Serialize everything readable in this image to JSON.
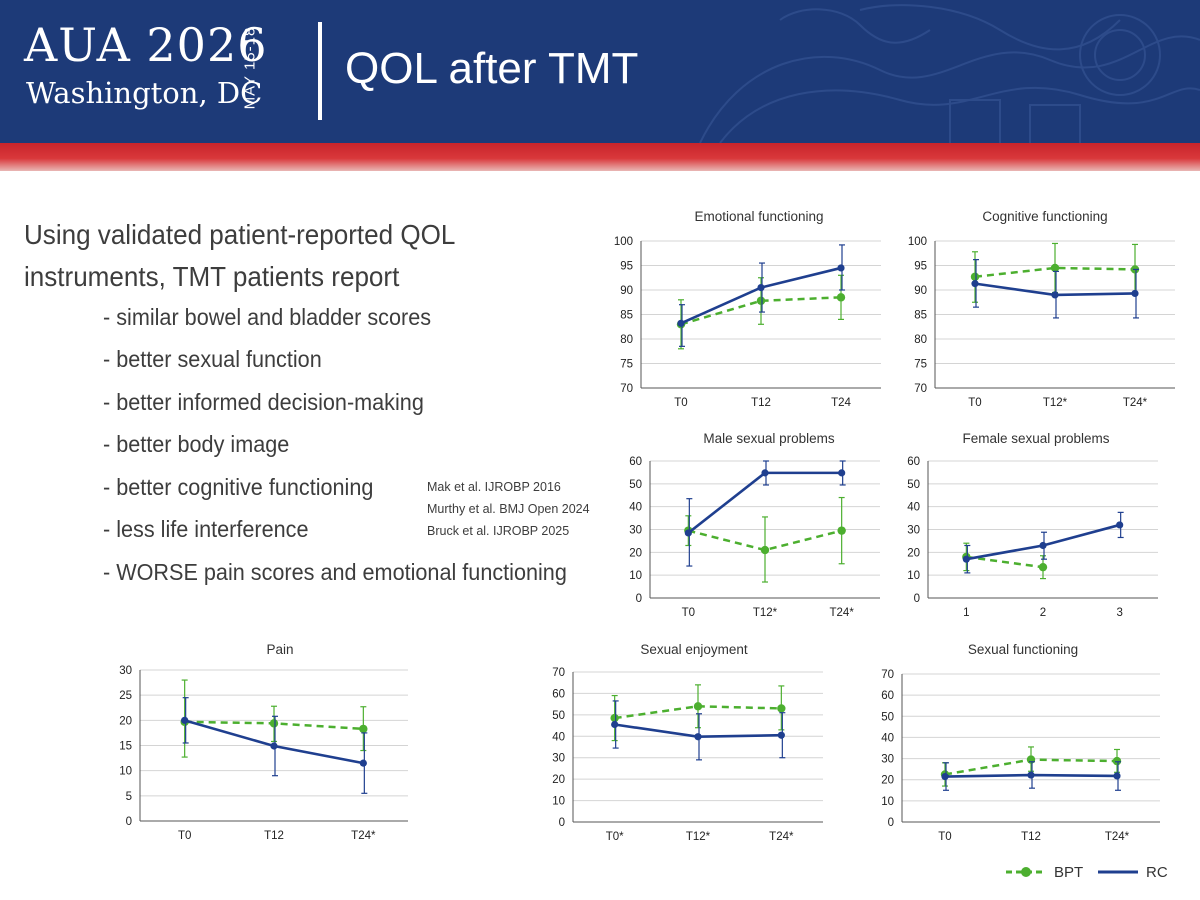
{
  "header": {
    "logo_line1": "AUA 2026",
    "logo_line2": "Washington, DC",
    "logo_dates": "MAY 15-18",
    "title": "QOL after TMT"
  },
  "intro": {
    "line1": "Using validated patient-reported QOL",
    "line2": "instruments, TMT patients report",
    "bullets": [
      "- similar bowel and bladder scores",
      "- better sexual function",
      "- better informed decision-making",
      "- better body image",
      "- better cognitive functioning",
      "- less life interference",
      "- WORSE pain scores and emotional functioning"
    ]
  },
  "references": [
    "Mak et al. IJROBP 2016",
    "Murthy et al. BMJ Open 2024",
    "Bruck et al. IJROBP 2025"
  ],
  "legend": [
    {
      "label": "BPT",
      "color": "#4caf2f",
      "style": "dashed"
    },
    {
      "label": "RC",
      "color": "#1f3f8f",
      "style": "solid"
    }
  ],
  "colors": {
    "bpt": "#4caf2f",
    "rc": "#1f3f8f",
    "banner": "#1d3a78",
    "red_band": "#c8242b"
  },
  "chart_data": [
    {
      "type": "line",
      "title": "Emotional functioning",
      "categories": [
        "T0",
        "T12",
        "T24"
      ],
      "ylim": [
        70,
        100
      ],
      "yticks": [
        70,
        75,
        80,
        85,
        90,
        95,
        100
      ],
      "grid": true,
      "series": [
        {
          "name": "BPT",
          "values": [
            83,
            87.8,
            88.5
          ],
          "err_low": [
            78,
            83,
            84
          ],
          "err_high": [
            88,
            92.5,
            93
          ]
        },
        {
          "name": "RC",
          "values": [
            83.2,
            90.5,
            94.5
          ],
          "err_low": [
            78.5,
            85.5,
            90
          ],
          "err_high": [
            87,
            95.5,
            99.2
          ]
        }
      ]
    },
    {
      "type": "line",
      "title": "Cognitive functioning",
      "categories": [
        "T0",
        "T12*",
        "T24*"
      ],
      "ylim": [
        70,
        100
      ],
      "yticks": [
        70,
        75,
        80,
        85,
        90,
        95,
        100
      ],
      "grid": true,
      "series": [
        {
          "name": "BPT",
          "values": [
            92.7,
            94.5,
            94.2
          ],
          "err_low": [
            87.5,
            89.5,
            89
          ],
          "err_high": [
            97.8,
            99.5,
            99.3
          ]
        },
        {
          "name": "RC",
          "values": [
            91.3,
            89,
            89.3
          ],
          "err_low": [
            86.5,
            84.3,
            84.3
          ],
          "err_high": [
            96.2,
            93.8,
            94.2
          ]
        }
      ]
    },
    {
      "type": "line",
      "title": "Male sexual problems",
      "categories": [
        "T0",
        "T12*",
        "T24*"
      ],
      "ylim": [
        0,
        60
      ],
      "yticks": [
        0,
        10,
        20,
        30,
        40,
        50,
        60
      ],
      "grid": true,
      "series": [
        {
          "name": "BPT",
          "values": [
            29.5,
            21,
            29.5
          ],
          "err_low": [
            23,
            7,
            15
          ],
          "err_high": [
            36,
            35.5,
            44
          ]
        },
        {
          "name": "RC",
          "values": [
            28.5,
            54.8,
            54.8
          ],
          "err_low": [
            14,
            49.5,
            49.5
          ],
          "err_high": [
            43.5,
            60,
            60
          ]
        }
      ]
    },
    {
      "type": "line",
      "title": "Female sexual problems",
      "categories": [
        "1",
        "2",
        "3"
      ],
      "ylim": [
        0,
        60
      ],
      "yticks": [
        0,
        10,
        20,
        30,
        40,
        50,
        60
      ],
      "grid": true,
      "series": [
        {
          "name": "BPT",
          "values": [
            18,
            13.5,
            null
          ],
          "err_low": [
            12,
            8.5,
            null
          ],
          "err_high": [
            24,
            18.5,
            null
          ]
        },
        {
          "name": "RC",
          "values": [
            17,
            23,
            32
          ],
          "err_low": [
            11,
            17,
            26.5
          ],
          "err_high": [
            23,
            28.8,
            37.5
          ]
        }
      ]
    },
    {
      "type": "line",
      "title": "Pain",
      "categories": [
        "T0",
        "T12",
        "T24*"
      ],
      "ylim": [
        0,
        30
      ],
      "yticks": [
        0,
        5,
        10,
        15,
        20,
        25,
        30
      ],
      "grid": true,
      "series": [
        {
          "name": "BPT",
          "values": [
            19.7,
            19.4,
            18.3
          ],
          "err_low": [
            12.7,
            15.8,
            14
          ],
          "err_high": [
            28,
            22.8,
            22.7
          ]
        },
        {
          "name": "RC",
          "values": [
            20,
            14.9,
            11.5
          ],
          "err_low": [
            15.5,
            9,
            5.5
          ],
          "err_high": [
            24.5,
            20.8,
            17.5
          ]
        }
      ]
    },
    {
      "type": "line",
      "title": "Sexual enjoyment",
      "categories": [
        "T0*",
        "T12*",
        "T24*"
      ],
      "ylim": [
        0,
        70
      ],
      "yticks": [
        0,
        10,
        20,
        30,
        40,
        50,
        60,
        70
      ],
      "grid": true,
      "series": [
        {
          "name": "BPT",
          "values": [
            48.5,
            54,
            53
          ],
          "err_low": [
            38,
            44,
            43
          ],
          "err_high": [
            59,
            64,
            63.5
          ]
        },
        {
          "name": "RC",
          "values": [
            45.5,
            39.8,
            40.5
          ],
          "err_low": [
            34.5,
            29,
            30
          ],
          "err_high": [
            56.5,
            50.5,
            51
          ]
        }
      ]
    },
    {
      "type": "line",
      "title": "Sexual functioning",
      "categories": [
        "T0",
        "T12",
        "T24*"
      ],
      "ylim": [
        0,
        70
      ],
      "yticks": [
        0,
        10,
        20,
        30,
        40,
        50,
        60,
        70
      ],
      "grid": true,
      "series": [
        {
          "name": "BPT",
          "values": [
            22.5,
            29.5,
            28.8
          ],
          "err_low": [
            17,
            24,
            23.5
          ],
          "err_high": [
            28,
            35.5,
            34.3
          ]
        },
        {
          "name": "RC",
          "values": [
            21.5,
            22.2,
            21.8
          ],
          "err_low": [
            15,
            16,
            15
          ],
          "err_high": [
            28,
            28.5,
            28.5
          ]
        }
      ]
    }
  ]
}
